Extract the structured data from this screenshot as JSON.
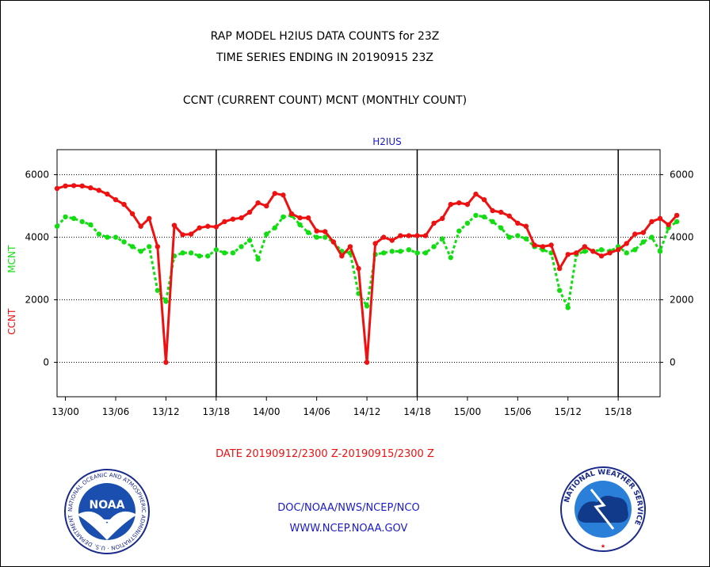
{
  "titles": {
    "line1": "RAP MODEL H2IUS DATA COUNTS for 23Z",
    "line2": "TIME SERIES ENDING IN 20190915 23Z",
    "line3": "CCNT (CURRENT COUNT) MCNT (MONTHLY COUNT)"
  },
  "date_range": "DATE 20190912/2300 Z-20190915/2300 Z",
  "footer": {
    "org": "DOC/NOAA/NWS/NCEP/NCO",
    "url": "WWW.NCEP.NOAA.GOV"
  },
  "logos": {
    "noaa_label": "NOAA",
    "noaa_ring_text": "NATIONAL OCEANIC AND ATMOSPHERIC ADMINISTRATION · U.S. DEPARTMENT OF COMMERCE ·",
    "nws_ring_text": "NATIONAL WEATHER SERVICE"
  },
  "colors": {
    "ccnt": "#ee1111",
    "mcnt": "#11dd11",
    "subtitle": "#1a1acc",
    "date_text": "#ee1111",
    "footer_text": "#1a1acc"
  },
  "chart_data": {
    "type": "line",
    "subtitle": "H2IUS",
    "ylabel_ccnt": "CCNT",
    "ylabel_mcnt": "MCNT",
    "ylim": [
      -1100,
      6800
    ],
    "yticks": [
      0,
      2000,
      4000,
      6000
    ],
    "x_start_hour": -1,
    "x_end_hour": 71,
    "xtick_hours": [
      0,
      6,
      12,
      18,
      24,
      30,
      36,
      42,
      48,
      54,
      60,
      66
    ],
    "xtick_labels": [
      "13/00",
      "13/06",
      "13/12",
      "13/18",
      "14/00",
      "14/06",
      "14/12",
      "14/18",
      "15/00",
      "15/06",
      "15/12",
      "15/18"
    ],
    "vline_hours": [
      18,
      42,
      66
    ],
    "series": [
      {
        "name": "CCNT",
        "color": "#ee1111",
        "values": [
          5560,
          5640,
          5650,
          5640,
          5580,
          5500,
          5380,
          5200,
          5050,
          4750,
          4350,
          4600,
          3700,
          0,
          4380,
          4080,
          4100,
          4300,
          4350,
          4330,
          4500,
          4580,
          4620,
          4800,
          5100,
          5000,
          5400,
          5350,
          4750,
          4620,
          4620,
          4200,
          4180,
          3850,
          3400,
          3700,
          3000,
          0,
          3800,
          4000,
          3900,
          4050,
          4050,
          4050,
          4050,
          4450,
          4600,
          5050,
          5100,
          5050,
          5380,
          5200,
          4850,
          4800,
          4680,
          4450,
          4350,
          3750,
          3700,
          3750,
          3000,
          3450,
          3500,
          3700,
          3550,
          3400,
          3500,
          3600,
          3800,
          4100,
          4150,
          4500,
          4600,
          4400,
          4700
        ]
      },
      {
        "name": "MCNT",
        "color": "#11dd11",
        "values": [
          4350,
          4650,
          4600,
          4500,
          4400,
          4100,
          4000,
          4000,
          3850,
          3700,
          3550,
          3700,
          2300,
          1950,
          3400,
          3500,
          3500,
          3400,
          3400,
          3600,
          3500,
          3500,
          3700,
          3900,
          3300,
          4100,
          4300,
          4650,
          4700,
          4400,
          4150,
          4000,
          4000,
          3850,
          3550,
          3500,
          2200,
          1800,
          3450,
          3500,
          3550,
          3550,
          3600,
          3500,
          3500,
          3700,
          3950,
          3350,
          4200,
          4450,
          4700,
          4650,
          4500,
          4300,
          4000,
          4050,
          3950,
          3700,
          3600,
          3500,
          2300,
          1750,
          3450,
          3550,
          3550,
          3600,
          3550,
          3700,
          3500,
          3600,
          3850,
          4000,
          3550,
          4300,
          4500
        ]
      }
    ]
  }
}
